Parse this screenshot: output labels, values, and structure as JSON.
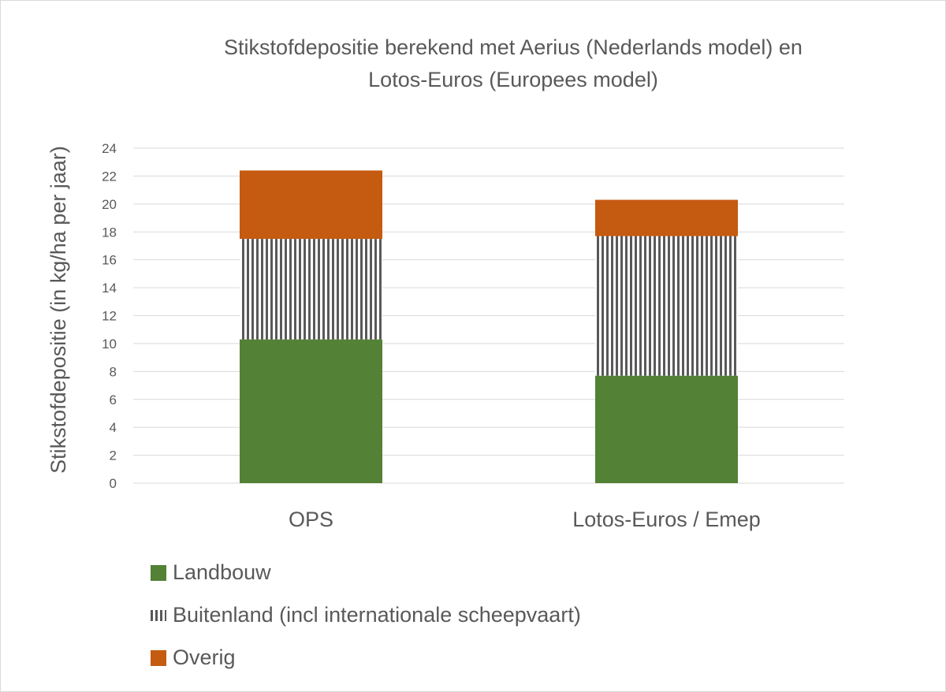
{
  "chart_data": {
    "type": "bar",
    "stacked": true,
    "title_lines": [
      "Stikstofdepositie berekend met Aerius (Nederlands model) en",
      "Lotos-Euros (Europees model)"
    ],
    "xlabel": "",
    "ylabel": "Stikstofdepositie (in kg/ha per jaar)",
    "ylim": [
      0,
      24
    ],
    "yticks": [
      "0",
      "2",
      "4",
      "6",
      "8",
      "10",
      "12",
      "14",
      "16",
      "18",
      "20",
      "22",
      "24"
    ],
    "yticks_values": [
      0,
      2,
      4,
      6,
      8,
      10,
      12,
      14,
      16,
      18,
      20,
      22,
      24
    ],
    "categories": [
      "OPS",
      "Lotos-Euros / Emep"
    ],
    "series": [
      {
        "name": "Landbouw",
        "values": [
          10.3,
          7.7
        ],
        "color": "#538135",
        "pattern": "solid"
      },
      {
        "name": "Buitenland (incl internationale scheepvaart)",
        "values": [
          7.2,
          10.0
        ],
        "color": "#595959",
        "pattern": "vertical-stripes"
      },
      {
        "name": "Overig",
        "values": [
          4.9,
          2.6
        ],
        "color": "#C55A11",
        "pattern": "solid"
      }
    ],
    "grid": true,
    "legend_position": "bottom-left"
  }
}
